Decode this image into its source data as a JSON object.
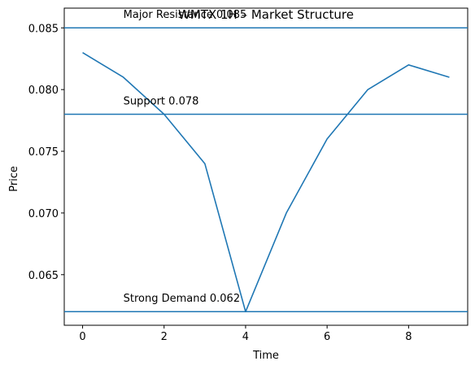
{
  "chart_data": {
    "type": "line",
    "title": "WMTX 1H – Market Structure",
    "xlabel": "Time",
    "ylabel": "Price",
    "xlim": [
      -0.45,
      9.45
    ],
    "ylim": [
      0.0609,
      0.0866
    ],
    "x_ticks": [
      0,
      2,
      4,
      6,
      8
    ],
    "y_ticks": [
      0.065,
      0.07,
      0.075,
      0.08,
      0.085
    ],
    "y_tick_labels": [
      "0.065",
      "0.070",
      "0.075",
      "0.080",
      "0.085"
    ],
    "grid": false,
    "series": [
      {
        "color": "#1f77b4",
        "x": [
          0,
          1,
          2,
          3,
          4,
          5,
          6,
          7,
          8,
          9
        ],
        "y": [
          0.083,
          0.081,
          0.078,
          0.074,
          0.062,
          0.07,
          0.076,
          0.08,
          0.082,
          0.081
        ]
      }
    ],
    "hlines": [
      {
        "y": 0.085,
        "color": "#1f77b4"
      },
      {
        "y": 0.078,
        "color": "#1f77b4"
      },
      {
        "y": 0.062,
        "color": "#1f77b4"
      }
    ],
    "annotations": [
      {
        "text": "Major Resistance 0.085",
        "x": 1,
        "y": 0.0858
      },
      {
        "text": "Support 0.078",
        "x": 1,
        "y": 0.0788
      },
      {
        "text": "Strong Demand 0.062",
        "x": 1,
        "y": 0.0628
      }
    ]
  }
}
